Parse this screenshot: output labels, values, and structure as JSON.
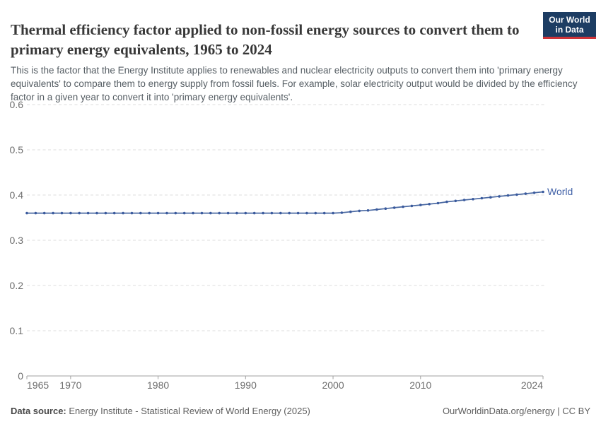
{
  "header": {
    "title": "Thermal efficiency factor applied to non-fossil energy sources to convert them to primary energy equivalents, 1965 to 2024",
    "subtitle": "This is the factor that the Energy Institute applies to renewables and nuclear electricity outputs to convert them into 'primary energy equivalents' to compare them to energy supply from fossil fuels. For example, solar electricity output would be divided by the efficiency factor in a given year to convert it into 'primary energy equivalents'.",
    "logo": {
      "line1": "Our World",
      "line2": "in Data"
    }
  },
  "chart_data": {
    "type": "line",
    "title": "Thermal efficiency factor applied to non-fossil energy sources to convert them to primary energy equivalents, 1965 to 2024",
    "x": [
      1965,
      1966,
      1967,
      1968,
      1969,
      1970,
      1971,
      1972,
      1973,
      1974,
      1975,
      1976,
      1977,
      1978,
      1979,
      1980,
      1981,
      1982,
      1983,
      1984,
      1985,
      1986,
      1987,
      1988,
      1989,
      1990,
      1991,
      1992,
      1993,
      1994,
      1995,
      1996,
      1997,
      1998,
      1999,
      2000,
      2001,
      2002,
      2003,
      2004,
      2005,
      2006,
      2007,
      2008,
      2009,
      2010,
      2011,
      2012,
      2013,
      2014,
      2015,
      2016,
      2017,
      2018,
      2019,
      2020,
      2021,
      2022,
      2023,
      2024
    ],
    "series": [
      {
        "name": "World",
        "values": [
          0.36,
          0.36,
          0.36,
          0.36,
          0.36,
          0.36,
          0.36,
          0.36,
          0.36,
          0.36,
          0.36,
          0.36,
          0.36,
          0.36,
          0.36,
          0.36,
          0.36,
          0.36,
          0.36,
          0.36,
          0.36,
          0.36,
          0.36,
          0.36,
          0.36,
          0.36,
          0.36,
          0.36,
          0.36,
          0.36,
          0.36,
          0.36,
          0.36,
          0.36,
          0.36,
          0.36,
          0.361,
          0.363,
          0.365,
          0.366,
          0.368,
          0.37,
          0.372,
          0.374,
          0.376,
          0.378,
          0.38,
          0.382,
          0.385,
          0.387,
          0.389,
          0.391,
          0.393,
          0.395,
          0.397,
          0.399,
          0.401,
          0.403,
          0.405,
          0.407
        ]
      }
    ],
    "xlabel": "",
    "ylabel": "",
    "ylim": [
      0,
      0.6
    ],
    "yticks": [
      0,
      0.1,
      0.2,
      0.3,
      0.4,
      0.5,
      0.6
    ],
    "xticks": [
      1965,
      1970,
      1980,
      1990,
      2000,
      2010,
      2024
    ],
    "grid": "horizontal-dashed",
    "legend_position": "end-of-line-label"
  },
  "footer": {
    "source_label": "Data source:",
    "source_text": " Energy Institute - Statistical Review of World Energy (2025)",
    "right_text": "OurWorldinData.org/energy | CC BY"
  },
  "colors": {
    "line": "#4a69a2",
    "marker": "#3a5a9d",
    "entity_label": "#4262a8",
    "grid": "#dcdcdc",
    "axis": "#a1a1a1",
    "tick_label": "#6e6e6e",
    "logo_bg": "#1d3d63",
    "logo_stripe": "#cf3439"
  }
}
